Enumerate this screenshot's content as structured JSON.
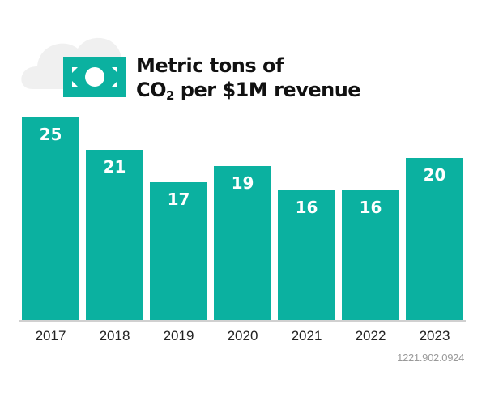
{
  "chart_data": {
    "type": "bar",
    "title_line1": "Metric tons of",
    "title_line2_prefix": "CO",
    "title_line2_sub": "2",
    "title_line2_suffix": " per $1M revenue",
    "categories": [
      "2017",
      "2018",
      "2019",
      "2020",
      "2021",
      "2022",
      "2023"
    ],
    "values": [
      25,
      21,
      17,
      19,
      16,
      16,
      20
    ],
    "data_labels": [
      "25",
      "21",
      "17",
      "19",
      "16",
      "16",
      "20"
    ],
    "xlabel": "",
    "ylabel": "",
    "grid": false,
    "legend": "none",
    "colors": {
      "bar": "#0bb1a0",
      "label": "#ffffff",
      "tick": "#222222",
      "cloud": "#f0f0f0",
      "baseline": "#d0d0d0"
    },
    "icons": [
      "cloud-icon",
      "money-bill-icon"
    ]
  },
  "footer": {
    "code": "1221.902.0924"
  }
}
